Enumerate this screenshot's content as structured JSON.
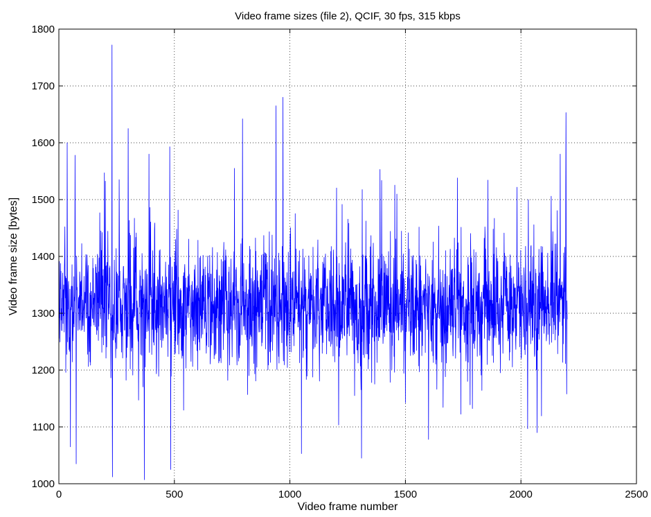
{
  "chart_data": {
    "type": "line",
    "title": "Video frame sizes (file 2), QCIF, 30 fps, 315 kbps",
    "xlabel": "Video frame number",
    "ylabel": "Video frame size [bytes]",
    "xlim": [
      0,
      2500
    ],
    "ylim": [
      1000,
      1800
    ],
    "xticks": [
      0,
      500,
      1000,
      1500,
      2000,
      2500
    ],
    "yticks": [
      1000,
      1100,
      1200,
      1300,
      1400,
      1500,
      1600,
      1700,
      1800
    ],
    "xtick_labels": [
      "0",
      "500",
      "1000",
      "1500",
      "2000",
      "2500"
    ],
    "ytick_labels": [
      "1000",
      "1100",
      "1200",
      "1300",
      "1400",
      "1500",
      "1600",
      "1700",
      "1800"
    ],
    "grid": true,
    "line_color": "#0000ff",
    "series": [
      {
        "frame_range": [
          1,
          2200
        ],
        "mean_bytes": 1315,
        "typical_spread_bytes": 55,
        "peaks": [
          [
            36,
            1600
          ],
          [
            50,
            1065
          ],
          [
            70,
            1578
          ],
          [
            75,
            1035
          ],
          [
            230,
            1772
          ],
          [
            232,
            1012
          ],
          [
            300,
            1625
          ],
          [
            370,
            1007
          ],
          [
            390,
            1580
          ],
          [
            480,
            1593
          ],
          [
            484,
            1025
          ],
          [
            760,
            1555
          ],
          [
            795,
            1642
          ],
          [
            940,
            1665
          ],
          [
            970,
            1680
          ],
          [
            1050,
            1053
          ],
          [
            1310,
            1045
          ],
          [
            1390,
            1553
          ],
          [
            1600,
            1078
          ],
          [
            2070,
            1090
          ],
          [
            2170,
            1580
          ],
          [
            2195,
            1653
          ],
          [
            2198,
            1158
          ]
        ]
      }
    ]
  }
}
